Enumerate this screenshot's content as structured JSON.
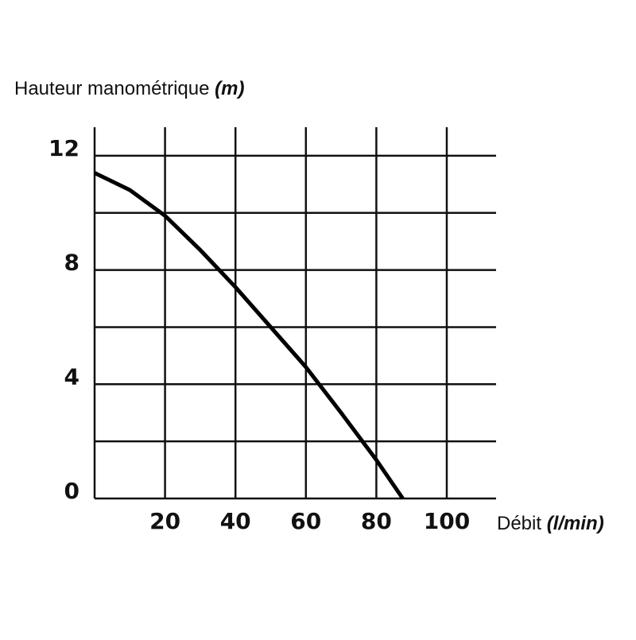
{
  "chart_data": {
    "type": "line",
    "ylabel": "Hauteur manométrique",
    "ylabel_unit": "(m)",
    "xlabel": "Débit",
    "xlabel_unit": "(l/min)",
    "x": [
      0,
      10,
      20,
      30,
      40,
      50,
      60,
      70,
      80,
      87.5
    ],
    "series": [
      {
        "name": null,
        "color": "#000000",
        "values": [
          11.4,
          10.8,
          9.9,
          8.7,
          7.4,
          6.0,
          4.6,
          3.0,
          1.35,
          0
        ]
      }
    ],
    "xlim": [
      0,
      114
    ],
    "ylim": [
      0,
      13
    ],
    "xticks": [
      20,
      40,
      60,
      80,
      100
    ],
    "yticks": [
      0,
      4,
      8,
      12
    ],
    "ygrid": [
      2,
      4,
      6,
      8,
      10,
      12
    ],
    "grid": true
  }
}
